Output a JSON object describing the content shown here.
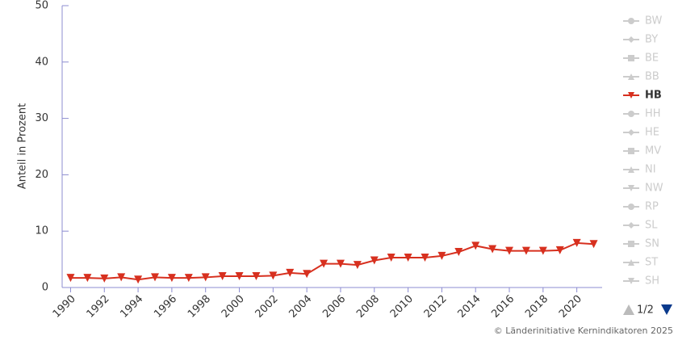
{
  "chart_data": {
    "type": "line",
    "y_label": "Anteil in Prozent",
    "x": [
      1990,
      1991,
      1992,
      1993,
      1994,
      1995,
      1996,
      1997,
      1998,
      1999,
      2000,
      2001,
      2002,
      2003,
      2004,
      2005,
      2006,
      2007,
      2008,
      2009,
      2010,
      2011,
      2012,
      2013,
      2014,
      2015,
      2016,
      2017,
      2018,
      2019,
      2020,
      2021
    ],
    "xlim": [
      1989.5,
      2021.5
    ],
    "xticks": [
      1990,
      1992,
      1994,
      1996,
      1998,
      2000,
      2002,
      2004,
      2006,
      2008,
      2010,
      2012,
      2014,
      2016,
      2018,
      2020
    ],
    "ylim": [
      0,
      50
    ],
    "yticks": [
      0,
      10,
      20,
      30,
      40,
      50
    ],
    "series": [
      {
        "name": "BW",
        "marker": "circle",
        "visible": false
      },
      {
        "name": "BY",
        "marker": "diamond",
        "visible": false
      },
      {
        "name": "BE",
        "marker": "square",
        "visible": false
      },
      {
        "name": "BB",
        "marker": "triangle",
        "visible": false
      },
      {
        "name": "HB",
        "marker": "triangle-down",
        "visible": true,
        "color": "#d7301f",
        "values": [
          1.7,
          1.7,
          1.6,
          1.8,
          1.4,
          1.8,
          1.7,
          1.7,
          1.8,
          2.0,
          2.0,
          2.0,
          2.1,
          2.6,
          2.4,
          4.2,
          4.2,
          4.0,
          4.8,
          5.3,
          5.3,
          5.3,
          5.6,
          6.3,
          7.4,
          6.8,
          6.5,
          6.5,
          6.5,
          6.6,
          7.9,
          7.7
        ]
      },
      {
        "name": "HH",
        "marker": "circle",
        "visible": false
      },
      {
        "name": "HE",
        "marker": "diamond",
        "visible": false
      },
      {
        "name": "MV",
        "marker": "square",
        "visible": false
      },
      {
        "name": "NI",
        "marker": "triangle",
        "visible": false
      },
      {
        "name": "NW",
        "marker": "triangle-down",
        "visible": false
      },
      {
        "name": "RP",
        "marker": "circle",
        "visible": false
      },
      {
        "name": "SL",
        "marker": "diamond",
        "visible": false
      },
      {
        "name": "SN",
        "marker": "square",
        "visible": false
      },
      {
        "name": "ST",
        "marker": "triangle",
        "visible": false
      },
      {
        "name": "SH",
        "marker": "triangle-down",
        "visible": false
      }
    ],
    "legend_page": "1/2",
    "credit": "© Länderinitiative Kernindikatoren 2025"
  }
}
